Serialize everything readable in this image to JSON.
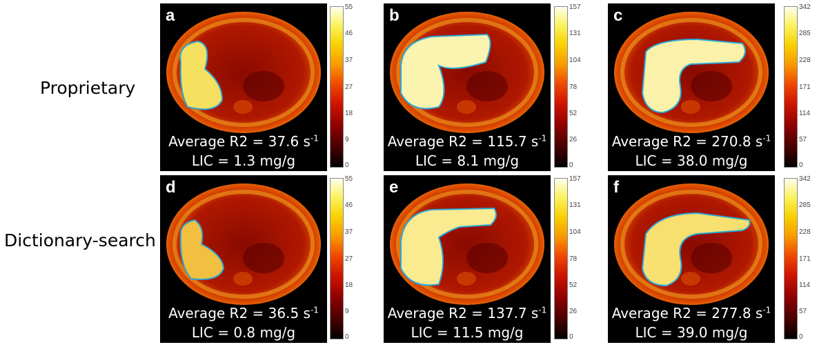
{
  "rows": [
    {
      "label": "Proprietary"
    },
    {
      "label": "Dictionary-search"
    }
  ],
  "panels": [
    {
      "letter": "a",
      "r2_prefix": "Average R2 = ",
      "r2_value": "37.6",
      "r2_unit": " s",
      "r2_exp": "-1",
      "lic": "LIC = 1.3 mg/g",
      "ticks": [
        "55",
        "46",
        "37",
        "27",
        "18",
        "9",
        "0"
      ]
    },
    {
      "letter": "b",
      "r2_prefix": "Average R2 = ",
      "r2_value": "115.7",
      "r2_unit": " s",
      "r2_exp": "-1",
      "lic": "LIC = 8.1 mg/g",
      "ticks": [
        "157",
        "131",
        "104",
        "78",
        "52",
        "26",
        "0"
      ]
    },
    {
      "letter": "c",
      "r2_prefix": "Average R2 = ",
      "r2_value": "270.8",
      "r2_unit": " s",
      "r2_exp": "-1",
      "lic": "LIC = 38.0 mg/g",
      "ticks": [
        "342",
        "285",
        "228",
        "171",
        "114",
        "57",
        "0"
      ]
    },
    {
      "letter": "d",
      "r2_prefix": "Average R2 = ",
      "r2_value": "36.5",
      "r2_unit": " s",
      "r2_exp": "-1",
      "lic": "LIC = 0.8 mg/g",
      "ticks": [
        "55",
        "46",
        "37",
        "27",
        "18",
        "9",
        "0"
      ]
    },
    {
      "letter": "e",
      "r2_prefix": "Average R2 = ",
      "r2_value": "137.7",
      "r2_unit": " s",
      "r2_exp": "-1",
      "lic": "LIC = 11.5 mg/g",
      "ticks": [
        "157",
        "131",
        "104",
        "78",
        "52",
        "26",
        "0"
      ]
    },
    {
      "letter": "f",
      "r2_prefix": "Average R2 = ",
      "r2_value": "277.8",
      "r2_unit": " s",
      "r2_exp": "-1",
      "lic": "LIC = 39.0 mg/g",
      "ticks": [
        "342",
        "285",
        "228",
        "171",
        "114",
        "57",
        "0"
      ]
    }
  ],
  "colors": {
    "roi_outline": "#2aa8d8",
    "liver_fill": "#f5e86a",
    "body_outer": "#f0a020",
    "body_inner": "#a01000"
  }
}
